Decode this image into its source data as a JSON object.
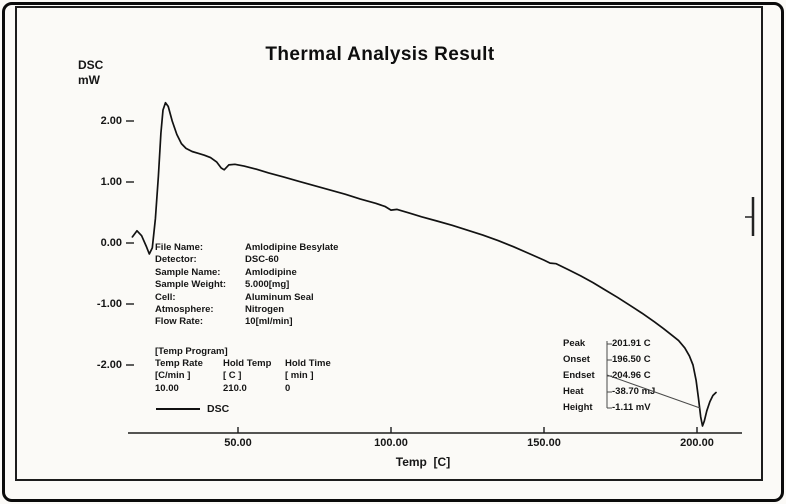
{
  "chart_data": {
    "type": "line",
    "title": "Thermal Analysis Result",
    "xlabel": "Temp  [C]",
    "ylabel": "DSC mW",
    "ylabel_lines": [
      "DSC",
      "mW"
    ],
    "xlim": [
      15,
      210
    ],
    "ylim": [
      -3.2,
      2.6
    ],
    "grid": false,
    "legend_position": "bottom-left",
    "legend": [
      "DSC"
    ],
    "x_ticks": [
      {
        "value": 50,
        "label": "50.00"
      },
      {
        "value": 100,
        "label": "100.00"
      },
      {
        "value": 150,
        "label": "150.00"
      },
      {
        "value": 200,
        "label": "200.00"
      }
    ],
    "y_ticks": [
      {
        "value": 2,
        "label": "2.00"
      },
      {
        "value": 1,
        "label": "1.00"
      },
      {
        "value": 0,
        "label": "0.00"
      },
      {
        "value": -1,
        "label": "-1.00"
      },
      {
        "value": -2,
        "label": "-2.00"
      }
    ],
    "series": [
      {
        "name": "DSC",
        "points": [
          [
            15.5,
            0.1
          ],
          [
            17,
            0.2
          ],
          [
            18.5,
            0.12
          ],
          [
            20,
            -0.05
          ],
          [
            21,
            -0.18
          ],
          [
            22,
            -0.08
          ],
          [
            23,
            0.4
          ],
          [
            24,
            1.1
          ],
          [
            24.8,
            1.8
          ],
          [
            25.5,
            2.18
          ],
          [
            26.3,
            2.3
          ],
          [
            27.2,
            2.24
          ],
          [
            28.5,
            2.0
          ],
          [
            30,
            1.78
          ],
          [
            31.5,
            1.63
          ],
          [
            33,
            1.55
          ],
          [
            35,
            1.5
          ],
          [
            37,
            1.47
          ],
          [
            39,
            1.44
          ],
          [
            41,
            1.4
          ],
          [
            43,
            1.33
          ],
          [
            44.5,
            1.23
          ],
          [
            45.5,
            1.2
          ],
          [
            47,
            1.28
          ],
          [
            49,
            1.29
          ],
          [
            52,
            1.26
          ],
          [
            56,
            1.21
          ],
          [
            60,
            1.15
          ],
          [
            65,
            1.08
          ],
          [
            70,
            1.01
          ],
          [
            75,
            0.94
          ],
          [
            80,
            0.87
          ],
          [
            85,
            0.8
          ],
          [
            90,
            0.72
          ],
          [
            95,
            0.65
          ],
          [
            98,
            0.6
          ],
          [
            100,
            0.54
          ],
          [
            102,
            0.55
          ],
          [
            106,
            0.49
          ],
          [
            110,
            0.43
          ],
          [
            115,
            0.36
          ],
          [
            120,
            0.29
          ],
          [
            125,
            0.21
          ],
          [
            130,
            0.13
          ],
          [
            135,
            0.04
          ],
          [
            140,
            -0.06
          ],
          [
            145,
            -0.17
          ],
          [
            150,
            -0.28
          ],
          [
            152,
            -0.33
          ],
          [
            154,
            -0.34
          ],
          [
            158,
            -0.44
          ],
          [
            162,
            -0.54
          ],
          [
            166,
            -0.65
          ],
          [
            170,
            -0.77
          ],
          [
            174,
            -0.89
          ],
          [
            178,
            -1.02
          ],
          [
            182,
            -1.15
          ],
          [
            186,
            -1.29
          ],
          [
            189,
            -1.4
          ],
          [
            192,
            -1.52
          ],
          [
            194,
            -1.6
          ],
          [
            196,
            -1.72
          ],
          [
            197.5,
            -1.85
          ],
          [
            198.7,
            -2.0
          ],
          [
            199.7,
            -2.25
          ],
          [
            200.5,
            -2.55
          ],
          [
            201.2,
            -2.85
          ],
          [
            201.8,
            -3.0
          ],
          [
            202.4,
            -2.92
          ],
          [
            203.2,
            -2.75
          ],
          [
            204.2,
            -2.6
          ],
          [
            205.2,
            -2.5
          ],
          [
            206.2,
            -2.45
          ]
        ]
      }
    ],
    "annotations": {
      "sample_info": {
        "rows": [
          {
            "label": "File Name:",
            "value": "Amlodipine Besylate"
          },
          {
            "label": "Detector:",
            "value": "DSC-60"
          },
          {
            "label": "Sample Name:",
            "value": "Amlodipine"
          },
          {
            "label": "Sample Weight:",
            "value": "5.000[mg]"
          },
          {
            "label": "Cell:",
            "value": "Aluminum Seal"
          },
          {
            "label": "Atmosphere:",
            "value": "Nitrogen"
          },
          {
            "label": "Flow Rate:",
            "value": "10[ml/min]"
          }
        ]
      },
      "temp_program": {
        "title": "[Temp Program]",
        "columns": [
          "Temp Rate",
          "Hold Temp",
          "Hold Time"
        ],
        "units": [
          "[C/min ]",
          "[ C ]",
          "[ min ]"
        ],
        "values": [
          "10.00",
          "210.0",
          "0"
        ]
      },
      "results": {
        "rows": [
          {
            "label": "Peak",
            "value": "201.91 C"
          },
          {
            "label": "Onset",
            "value": "196.50 C"
          },
          {
            "label": "Endset",
            "value": "204.96 C"
          },
          {
            "label": "Heat",
            "value": "-38.70 mJ"
          },
          {
            "label": "Height",
            "value": "-1.11 mV"
          }
        ]
      }
    }
  }
}
